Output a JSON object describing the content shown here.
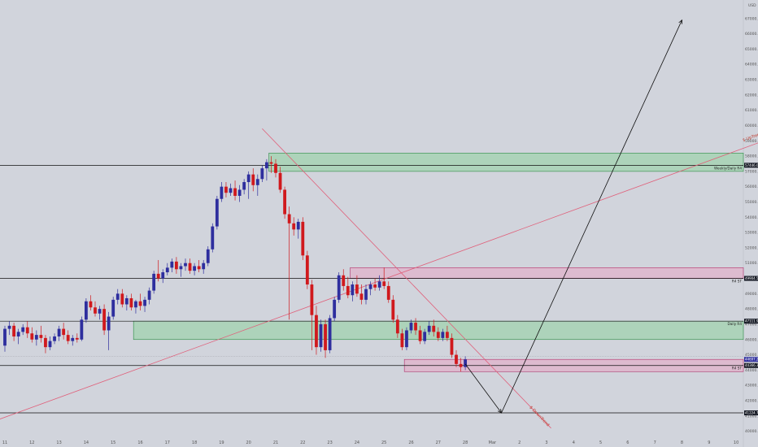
{
  "chart_data": {
    "type": "candlestick",
    "currency": "USD",
    "ylim": [
      39500,
      68000
    ],
    "y_ticks": [
      40000,
      41000,
      42000,
      43000,
      44000,
      45000,
      46000,
      47000,
      48000,
      49000,
      50000,
      51000,
      52000,
      53000,
      54000,
      55000,
      56000,
      57000,
      58000,
      59000,
      60000,
      61000,
      62000,
      63000,
      64000,
      65000,
      66000,
      67000
    ],
    "x_tick_labels": [
      "11",
      "12",
      "13",
      "14",
      "15",
      "16",
      "17",
      "18",
      "19",
      "20",
      "21",
      "22",
      "23",
      "24",
      "25",
      "26",
      "27",
      "28",
      "Mar",
      "2",
      "3",
      "4",
      "5",
      "6",
      "7",
      "8",
      "9",
      "10"
    ],
    "x_tick_bars": [
      0,
      6,
      12,
      18,
      24,
      30,
      36,
      42,
      48,
      54,
      60,
      66,
      72,
      78,
      84,
      90,
      96,
      102,
      108,
      114,
      120,
      126,
      132,
      138,
      144,
      150,
      156,
      162
    ],
    "colors": {
      "up": "#2e2e9e",
      "down": "#d0191d",
      "zone_green": "#8fd19e",
      "zone_pink": "#e8a6c4",
      "trend": "#e0607a",
      "level": "#111111"
    },
    "candles": [
      {
        "o": 45600,
        "h": 46900,
        "l": 45200,
        "c": 46700
      },
      {
        "o": 46700,
        "h": 47200,
        "l": 46300,
        "c": 46900
      },
      {
        "o": 46900,
        "h": 47100,
        "l": 45900,
        "c": 46200
      },
      {
        "o": 46200,
        "h": 46700,
        "l": 45700,
        "c": 46500
      },
      {
        "o": 46500,
        "h": 47000,
        "l": 46300,
        "c": 46800
      },
      {
        "o": 46800,
        "h": 47200,
        "l": 46100,
        "c": 46400
      },
      {
        "o": 46400,
        "h": 46800,
        "l": 45800,
        "c": 46000
      },
      {
        "o": 46000,
        "h": 46600,
        "l": 45600,
        "c": 46300
      },
      {
        "o": 46300,
        "h": 46900,
        "l": 45800,
        "c": 46100
      },
      {
        "o": 46100,
        "h": 46300,
        "l": 45100,
        "c": 45500
      },
      {
        "o": 45500,
        "h": 46200,
        "l": 45300,
        "c": 45900
      },
      {
        "o": 45900,
        "h": 46400,
        "l": 45700,
        "c": 46200
      },
      {
        "o": 46200,
        "h": 46900,
        "l": 45900,
        "c": 46700
      },
      {
        "o": 46700,
        "h": 47100,
        "l": 46000,
        "c": 46300
      },
      {
        "o": 46300,
        "h": 46600,
        "l": 45700,
        "c": 45900
      },
      {
        "o": 45900,
        "h": 46300,
        "l": 45600,
        "c": 46100
      },
      {
        "o": 46100,
        "h": 46400,
        "l": 45800,
        "c": 46000
      },
      {
        "o": 46000,
        "h": 47500,
        "l": 45900,
        "c": 47300
      },
      {
        "o": 47300,
        "h": 48700,
        "l": 47100,
        "c": 48500
      },
      {
        "o": 48500,
        "h": 48900,
        "l": 47900,
        "c": 48100
      },
      {
        "o": 48100,
        "h": 48500,
        "l": 47500,
        "c": 47700
      },
      {
        "o": 47700,
        "h": 48200,
        "l": 47300,
        "c": 48000
      },
      {
        "o": 48000,
        "h": 48300,
        "l": 46300,
        "c": 46600
      },
      {
        "o": 46600,
        "h": 47800,
        "l": 45300,
        "c": 47500
      },
      {
        "o": 47500,
        "h": 48800,
        "l": 47300,
        "c": 48600
      },
      {
        "o": 48600,
        "h": 49300,
        "l": 48300,
        "c": 49000
      },
      {
        "o": 49000,
        "h": 49300,
        "l": 48100,
        "c": 48300
      },
      {
        "o": 48300,
        "h": 48900,
        "l": 47900,
        "c": 48700
      },
      {
        "o": 48700,
        "h": 49000,
        "l": 47900,
        "c": 48100
      },
      {
        "o": 48100,
        "h": 48600,
        "l": 47700,
        "c": 48500
      },
      {
        "o": 48500,
        "h": 49000,
        "l": 47900,
        "c": 48200
      },
      {
        "o": 48200,
        "h": 48800,
        "l": 47800,
        "c": 48600
      },
      {
        "o": 48600,
        "h": 49400,
        "l": 48300,
        "c": 49200
      },
      {
        "o": 49200,
        "h": 50500,
        "l": 49000,
        "c": 50300
      },
      {
        "o": 50300,
        "h": 51200,
        "l": 49800,
        "c": 50000
      },
      {
        "o": 50000,
        "h": 50600,
        "l": 49700,
        "c": 50400
      },
      {
        "o": 50400,
        "h": 51000,
        "l": 50200,
        "c": 50700
      },
      {
        "o": 50700,
        "h": 51300,
        "l": 50400,
        "c": 51100
      },
      {
        "o": 51100,
        "h": 51400,
        "l": 50300,
        "c": 50600
      },
      {
        "o": 50600,
        "h": 51000,
        "l": 50100,
        "c": 50800
      },
      {
        "o": 50800,
        "h": 51300,
        "l": 50500,
        "c": 51000
      },
      {
        "o": 51000,
        "h": 51300,
        "l": 50300,
        "c": 50500
      },
      {
        "o": 50500,
        "h": 51000,
        "l": 50200,
        "c": 50800
      },
      {
        "o": 50800,
        "h": 51200,
        "l": 50400,
        "c": 50600
      },
      {
        "o": 50600,
        "h": 51200,
        "l": 50300,
        "c": 51000
      },
      {
        "o": 51000,
        "h": 52100,
        "l": 50800,
        "c": 51900
      },
      {
        "o": 51900,
        "h": 53600,
        "l": 51700,
        "c": 53400
      },
      {
        "o": 53400,
        "h": 55400,
        "l": 53200,
        "c": 55200
      },
      {
        "o": 55200,
        "h": 56300,
        "l": 55000,
        "c": 56000
      },
      {
        "o": 56000,
        "h": 56300,
        "l": 55300,
        "c": 55600
      },
      {
        "o": 55600,
        "h": 56200,
        "l": 55400,
        "c": 55900
      },
      {
        "o": 55900,
        "h": 56400,
        "l": 55100,
        "c": 55400
      },
      {
        "o": 55400,
        "h": 56100,
        "l": 55000,
        "c": 55800
      },
      {
        "o": 55800,
        "h": 56500,
        "l": 55500,
        "c": 56300
      },
      {
        "o": 56300,
        "h": 57000,
        "l": 55200,
        "c": 56800
      },
      {
        "o": 56800,
        "h": 57200,
        "l": 55700,
        "c": 56100
      },
      {
        "o": 56100,
        "h": 56800,
        "l": 55400,
        "c": 56500
      },
      {
        "o": 56500,
        "h": 57400,
        "l": 56300,
        "c": 57200
      },
      {
        "o": 57200,
        "h": 57800,
        "l": 56400,
        "c": 57600
      },
      {
        "o": 57600,
        "h": 58000,
        "l": 56900,
        "c": 57500
      },
      {
        "o": 57500,
        "h": 57800,
        "l": 56600,
        "c": 56900
      },
      {
        "o": 56900,
        "h": 57300,
        "l": 55600,
        "c": 55800
      },
      {
        "o": 55800,
        "h": 56000,
        "l": 53900,
        "c": 54200
      },
      {
        "o": 54200,
        "h": 54700,
        "l": 47300,
        "c": 53600
      },
      {
        "o": 53600,
        "h": 54000,
        "l": 52800,
        "c": 53200
      },
      {
        "o": 53200,
        "h": 53900,
        "l": 52600,
        "c": 53700
      },
      {
        "o": 53700,
        "h": 54000,
        "l": 51200,
        "c": 51500
      },
      {
        "o": 51500,
        "h": 51800,
        "l": 49300,
        "c": 49600
      },
      {
        "o": 49600,
        "h": 49900,
        "l": 45300,
        "c": 47600
      },
      {
        "o": 47600,
        "h": 48200,
        "l": 45000,
        "c": 45500
      },
      {
        "o": 45500,
        "h": 47300,
        "l": 45200,
        "c": 47000
      },
      {
        "o": 47000,
        "h": 47300,
        "l": 44800,
        "c": 45300
      },
      {
        "o": 45300,
        "h": 47600,
        "l": 45100,
        "c": 47400
      },
      {
        "o": 47400,
        "h": 48800,
        "l": 47200,
        "c": 48600
      },
      {
        "o": 48600,
        "h": 50400,
        "l": 48400,
        "c": 50200
      },
      {
        "o": 50200,
        "h": 50600,
        "l": 49200,
        "c": 49500
      },
      {
        "o": 49500,
        "h": 50100,
        "l": 48700,
        "c": 48900
      },
      {
        "o": 48900,
        "h": 49800,
        "l": 48500,
        "c": 49600
      },
      {
        "o": 49600,
        "h": 50200,
        "l": 48800,
        "c": 49000
      },
      {
        "o": 49000,
        "h": 49600,
        "l": 48300,
        "c": 48600
      },
      {
        "o": 48600,
        "h": 49600,
        "l": 48300,
        "c": 49300
      },
      {
        "o": 49300,
        "h": 49800,
        "l": 48900,
        "c": 49600
      },
      {
        "o": 49600,
        "h": 50000,
        "l": 49200,
        "c": 49400
      },
      {
        "o": 49400,
        "h": 50200,
        "l": 49200,
        "c": 49800
      },
      {
        "o": 49800,
        "h": 50700,
        "l": 49300,
        "c": 49500
      },
      {
        "o": 49500,
        "h": 49800,
        "l": 48400,
        "c": 48600
      },
      {
        "o": 48600,
        "h": 48900,
        "l": 47100,
        "c": 47300
      },
      {
        "o": 47300,
        "h": 47600,
        "l": 46100,
        "c": 46400
      },
      {
        "o": 46400,
        "h": 46700,
        "l": 45300,
        "c": 45500
      },
      {
        "o": 45500,
        "h": 46800,
        "l": 45300,
        "c": 46600
      },
      {
        "o": 46600,
        "h": 47300,
        "l": 46400,
        "c": 47100
      },
      {
        "o": 47100,
        "h": 47400,
        "l": 46300,
        "c": 46600
      },
      {
        "o": 46600,
        "h": 46900,
        "l": 45700,
        "c": 45900
      },
      {
        "o": 45900,
        "h": 46700,
        "l": 45700,
        "c": 46500
      },
      {
        "o": 46500,
        "h": 47200,
        "l": 46300,
        "c": 46900
      },
      {
        "o": 46900,
        "h": 47300,
        "l": 46200,
        "c": 46500
      },
      {
        "o": 46500,
        "h": 46800,
        "l": 45900,
        "c": 46100
      },
      {
        "o": 46100,
        "h": 46700,
        "l": 45900,
        "c": 46500
      },
      {
        "o": 46500,
        "h": 46900,
        "l": 45900,
        "c": 46100
      },
      {
        "o": 46100,
        "h": 46400,
        "l": 44800,
        "c": 45000
      },
      {
        "o": 45000,
        "h": 45300,
        "l": 44200,
        "c": 44400
      },
      {
        "o": 44400,
        "h": 44800,
        "l": 43900,
        "c": 44200
      },
      {
        "o": 44200,
        "h": 44900,
        "l": 44000,
        "c": 44700
      }
    ],
    "zones": [
      {
        "name": "zone-upper-green",
        "type": "green",
        "y_top": 58200,
        "y_bottom": 57000,
        "x_start_bar": 59,
        "x_end_bar": 173
      },
      {
        "name": "zone-upper-pink",
        "type": "pink",
        "y_top": 50700,
        "y_bottom": 50000,
        "x_start_bar": 77,
        "x_end_bar": 173
      },
      {
        "name": "zone-mid-green",
        "type": "green",
        "y_top": 47200,
        "y_bottom": 46000,
        "x_start_bar": 29,
        "x_end_bar": 173
      },
      {
        "name": "zone-lower-pink",
        "type": "pink",
        "y_top": 44700,
        "y_bottom": 43900,
        "x_start_bar": 89,
        "x_end_bar": 173
      }
    ],
    "levels": [
      {
        "name": "level-weekly-daily",
        "y": 57400,
        "label": "Weekly/Daily R4",
        "badge": "57446.00"
      },
      {
        "name": "level-h4-upper",
        "y": 50000,
        "label": "R4 ST",
        "badge": "49904.58"
      },
      {
        "name": "level-daily",
        "y": 47200,
        "label": "Daily R4",
        "badge": "47111.92"
      },
      {
        "name": "level-h4-lower",
        "y": 44300,
        "label": "R4 ST",
        "badge": "44366.32"
      },
      {
        "name": "level-bottom",
        "y": 41200,
        "label": "",
        "badge": "41224.77"
      }
    ],
    "current_price": {
      "y": 44700,
      "badge": "44697.24"
    },
    "current_price_line_y": 44900,
    "trendlines": [
      {
        "name": "up-trend-line",
        "label": "$ UpTrend",
        "points": [
          [
            -2,
            40700
          ],
          [
            170,
            59200
          ]
        ]
      },
      {
        "name": "down-trend-line",
        "label": "$ DownTrend",
        "points": [
          [
            57,
            59800
          ],
          [
            121,
            40200
          ]
        ]
      }
    ],
    "projection": [
      [
        102,
        44400
      ],
      [
        110,
        41200
      ],
      [
        150,
        66900
      ]
    ],
    "axis_label": "USD"
  }
}
